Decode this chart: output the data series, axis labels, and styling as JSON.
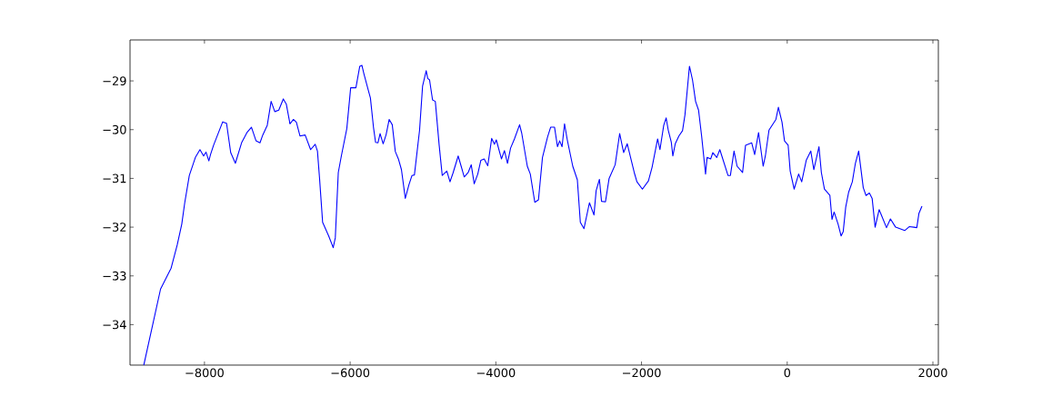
{
  "chart_data": {
    "type": "line",
    "color": "#0000ff",
    "line_style": "solid",
    "x": [
      -8833,
      -8603,
      -8458,
      -8375,
      -8312,
      -8271,
      -8208,
      -8125,
      -8062,
      -8012,
      -7979,
      -7940,
      -7917,
      -7875,
      -7750,
      -7697,
      -7640,
      -7576,
      -7488,
      -7417,
      -7355,
      -7292,
      -7238,
      -7200,
      -7138,
      -7085,
      -7035,
      -6980,
      -6918,
      -6876,
      -6826,
      -6780,
      -6738,
      -6689,
      -6618,
      -6543,
      -6480,
      -6449,
      -6420,
      -6378,
      -6295,
      -6233,
      -6204,
      -6163,
      -6121,
      -6046,
      -5993,
      -5921,
      -5868,
      -5839,
      -5810,
      -5755,
      -5722,
      -5680,
      -5651,
      -5618,
      -5589,
      -5547,
      -5506,
      -5464,
      -5422,
      -5380,
      -5338,
      -5296,
      -5243,
      -5193,
      -5151,
      -5118,
      -5047,
      -5006,
      -4956,
      -4935,
      -4910,
      -4869,
      -4831,
      -4778,
      -4736,
      -4673,
      -4629,
      -4588,
      -4517,
      -4434,
      -4380,
      -4338,
      -4297,
      -4248,
      -4206,
      -4160,
      -4111,
      -4057,
      -4019,
      -3994,
      -3923,
      -3882,
      -3840,
      -3798,
      -3745,
      -3674,
      -3645,
      -3568,
      -3527,
      -3465,
      -3415,
      -3360,
      -3290,
      -3248,
      -3194,
      -3154,
      -3124,
      -3091,
      -3057,
      -3019,
      -2944,
      -2881,
      -2840,
      -2790,
      -2715,
      -2653,
      -2623,
      -2578,
      -2549,
      -2495,
      -2445,
      -2362,
      -2300,
      -2246,
      -2196,
      -2100,
      -2063,
      -1988,
      -1905,
      -1855,
      -1779,
      -1747,
      -1695,
      -1662,
      -1633,
      -1591,
      -1570,
      -1537,
      -1487,
      -1437,
      -1404,
      -1342,
      -1300,
      -1258,
      -1217,
      -1175,
      -1121,
      -1100,
      -1050,
      -1021,
      -967,
      -925,
      -813,
      -780,
      -730,
      -688,
      -613,
      -572,
      -488,
      -447,
      -393,
      -330,
      -300,
      -250,
      -155,
      -121,
      -71,
      -37,
      13,
      41,
      95,
      157,
      199,
      261,
      324,
      365,
      436,
      469,
      511,
      586,
      615,
      644,
      699,
      740,
      769,
      803,
      844,
      894,
      936,
      981,
      1044,
      1082,
      1128,
      1166,
      1207,
      1262,
      1363,
      1417,
      1488,
      1613,
      1675,
      1738,
      1779,
      1808,
      1850
    ],
    "values": [
      -34.83,
      -33.27,
      -32.84,
      -32.37,
      -31.94,
      -31.5,
      -30.94,
      -30.57,
      -30.41,
      -30.54,
      -30.46,
      -30.64,
      -30.51,
      -30.32,
      -29.84,
      -29.87,
      -30.47,
      -30.69,
      -30.26,
      -30.06,
      -29.95,
      -30.23,
      -30.27,
      -30.11,
      -29.91,
      -29.42,
      -29.63,
      -29.6,
      -29.37,
      -29.48,
      -29.88,
      -29.79,
      -29.85,
      -30.13,
      -30.11,
      -30.41,
      -30.3,
      -30.44,
      -31.0,
      -31.9,
      -32.18,
      -32.42,
      -32.22,
      -30.88,
      -30.54,
      -29.98,
      -29.14,
      -29.14,
      -28.7,
      -28.68,
      -28.86,
      -29.17,
      -29.35,
      -29.95,
      -30.26,
      -30.27,
      -30.08,
      -30.29,
      -30.1,
      -29.79,
      -29.9,
      -30.45,
      -30.6,
      -30.82,
      -31.41,
      -31.13,
      -30.94,
      -30.93,
      -30.01,
      -29.11,
      -28.79,
      -28.95,
      -28.98,
      -29.39,
      -29.42,
      -30.32,
      -30.94,
      -30.85,
      -31.07,
      -30.89,
      -30.54,
      -30.97,
      -30.88,
      -30.72,
      -31.11,
      -30.91,
      -30.63,
      -30.6,
      -30.74,
      -30.18,
      -30.3,
      -30.21,
      -30.6,
      -30.43,
      -30.69,
      -30.38,
      -30.19,
      -29.9,
      -30.07,
      -30.75,
      -30.91,
      -31.49,
      -31.44,
      -30.57,
      -30.15,
      -29.95,
      -29.95,
      -30.35,
      -30.23,
      -30.35,
      -29.88,
      -30.21,
      -30.75,
      -31.03,
      -31.9,
      -32.03,
      -31.5,
      -31.75,
      -31.25,
      -31.02,
      -31.47,
      -31.48,
      -31.0,
      -30.72,
      -30.08,
      -30.47,
      -30.29,
      -30.88,
      -31.07,
      -31.22,
      -31.05,
      -30.77,
      -30.19,
      -30.41,
      -29.91,
      -29.76,
      -30.01,
      -30.26,
      -30.54,
      -30.29,
      -30.13,
      -30.02,
      -29.7,
      -28.7,
      -28.98,
      -29.42,
      -29.6,
      -30.13,
      -30.91,
      -30.57,
      -30.6,
      -30.47,
      -30.57,
      -30.41,
      -30.94,
      -30.94,
      -30.44,
      -30.75,
      -30.88,
      -30.32,
      -30.27,
      -30.51,
      -30.06,
      -30.75,
      -30.54,
      -30.01,
      -29.79,
      -29.54,
      -29.85,
      -30.23,
      -30.32,
      -30.85,
      -31.22,
      -30.91,
      -31.07,
      -30.63,
      -30.44,
      -30.82,
      -30.35,
      -30.88,
      -31.22,
      -31.35,
      -31.84,
      -31.69,
      -31.94,
      -32.18,
      -32.09,
      -31.59,
      -31.28,
      -31.07,
      -30.69,
      -30.44,
      -31.19,
      -31.35,
      -31.3,
      -31.41,
      -32.0,
      -31.64,
      -32.01,
      -31.83,
      -32.0,
      -32.07,
      -31.99,
      -32.0,
      -32.01,
      -31.72,
      -31.57
    ],
    "xlim": [
      -9022,
      2075
    ],
    "ylim": [
      -34.83,
      -28.16
    ],
    "xticks": [
      {
        "value": -8000,
        "label": "−8000"
      },
      {
        "value": -6000,
        "label": "−6000"
      },
      {
        "value": -4000,
        "label": "−4000"
      },
      {
        "value": -2000,
        "label": "−2000"
      },
      0,
      2000
    ],
    "yticks": [
      {
        "value": -34,
        "label": "−34"
      },
      {
        "value": -33,
        "label": "−33"
      },
      {
        "value": -32,
        "label": "−32"
      },
      {
        "value": -31,
        "label": "−31"
      },
      {
        "value": -30,
        "label": "−30"
      },
      {
        "value": -29,
        "label": "−29"
      }
    ]
  }
}
